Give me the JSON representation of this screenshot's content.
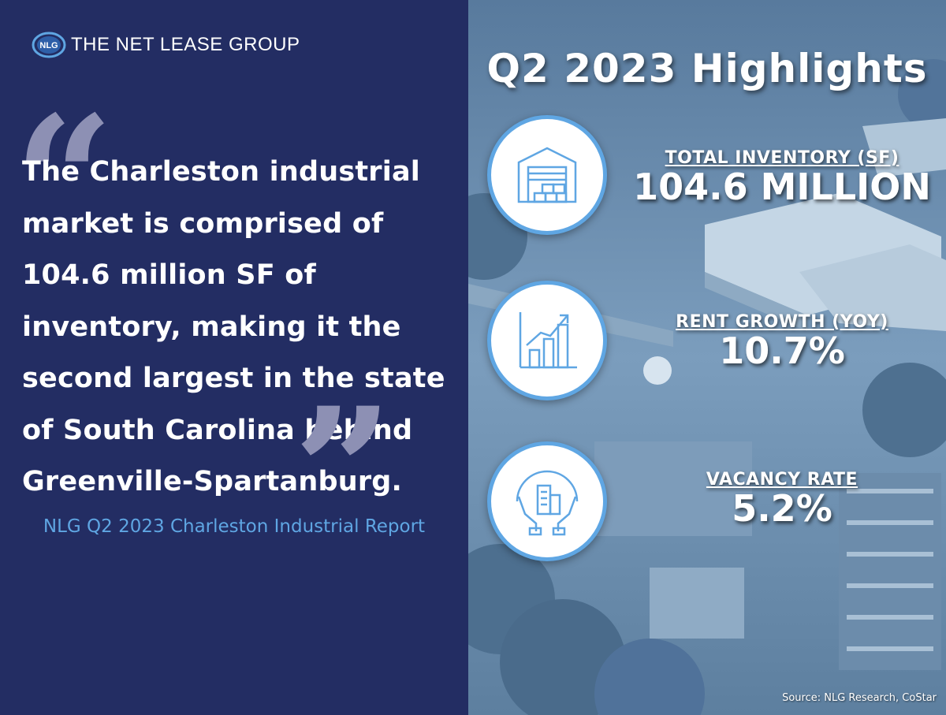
{
  "brand": {
    "logo_mark_text": "NLG",
    "name": "THE NET LEASE GROUP"
  },
  "quote": {
    "open_mark": "“",
    "close_mark": "”",
    "text": "The Charleston industrial market is comprised of 104.6 million SF of inventory, making it the second largest in the state of South Carolina behind Greenville-Spartanburg.",
    "source": "NLG Q2 2023 Charleston Industrial Report"
  },
  "highlights": {
    "title": "Q2 2023 Highlights",
    "stats": [
      {
        "label": "TOTAL INVENTORY (SF)",
        "value": "104.6 MILLION",
        "icon": "warehouse-icon"
      },
      {
        "label": "RENT GROWTH (YOY)",
        "value": "10.7%",
        "icon": "growth-chart-icon"
      },
      {
        "label": "VACANCY RATE",
        "value": "5.2%",
        "icon": "hands-building-icon"
      }
    ]
  },
  "footer": {
    "source_note": "Source: NLG Research, CoStar"
  },
  "colors": {
    "navy": "#232d63",
    "accent_blue": "#5fa6e3",
    "quote_mark_grey": "#8d90b4",
    "photo_tint": "#6f8fae"
  }
}
